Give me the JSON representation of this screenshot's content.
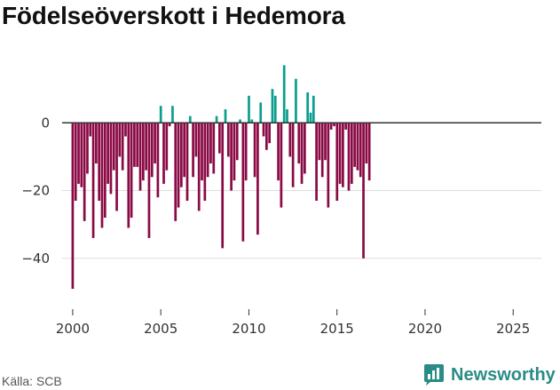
{
  "title": "Födelseöverskott i Hedemora",
  "source": "Källa: SCB",
  "brand": {
    "name": "Newsworthy",
    "icon": "newsworthy-logo-icon"
  },
  "colors": {
    "negative": "#8a0a45",
    "positive": "#0a9e8e",
    "grid": "#dddddd",
    "zero_line": "#333333"
  },
  "chart_data": {
    "type": "bar",
    "title": "Födelseöverskott i Hedemora",
    "xlabel": "",
    "ylabel": "",
    "ylim": [
      -55,
      20
    ],
    "xlim": [
      1999.4,
      2026.6
    ],
    "yticks": [
      0,
      -20,
      -40
    ],
    "ytick_labels": [
      "0",
      "−20",
      "−40"
    ],
    "xticks": [
      2000,
      2005,
      2010,
      2015,
      2020,
      2025
    ],
    "xtick_labels": [
      "2000",
      "2005",
      "2010",
      "2015",
      "2020",
      "2025"
    ],
    "grid": true,
    "bar_spacing_years": 0.1667,
    "start_year": 2000.0,
    "values": [
      -49,
      -23,
      -18,
      -19,
      -29,
      -15,
      -4,
      -34,
      -12,
      -23,
      -31,
      -28,
      -18,
      -21,
      -14,
      -26,
      -10,
      -14,
      -4,
      -31,
      -28,
      -13,
      -13,
      -20,
      -17,
      -14,
      -34,
      -16,
      -12,
      -22,
      5,
      -18,
      -14,
      -1,
      5,
      -29,
      -25,
      -19,
      -16,
      -23,
      2,
      -16,
      -10,
      -26,
      -17,
      -23,
      -16,
      -12,
      -15,
      2,
      -9,
      -37,
      4,
      -10,
      -20,
      -17,
      -11,
      1,
      -35,
      -17,
      8,
      1,
      -16,
      -33,
      6,
      -4,
      -8,
      -6,
      10,
      8,
      -17,
      -25,
      17,
      4,
      -10,
      -19,
      13,
      -12,
      -18,
      -15,
      9,
      3,
      8,
      -23,
      -11,
      -16,
      -11,
      -25,
      -2,
      -1,
      -23,
      -18,
      -19,
      -2,
      -20,
      -18,
      -13,
      -14,
      -16,
      -40,
      -12,
      -17
    ]
  }
}
